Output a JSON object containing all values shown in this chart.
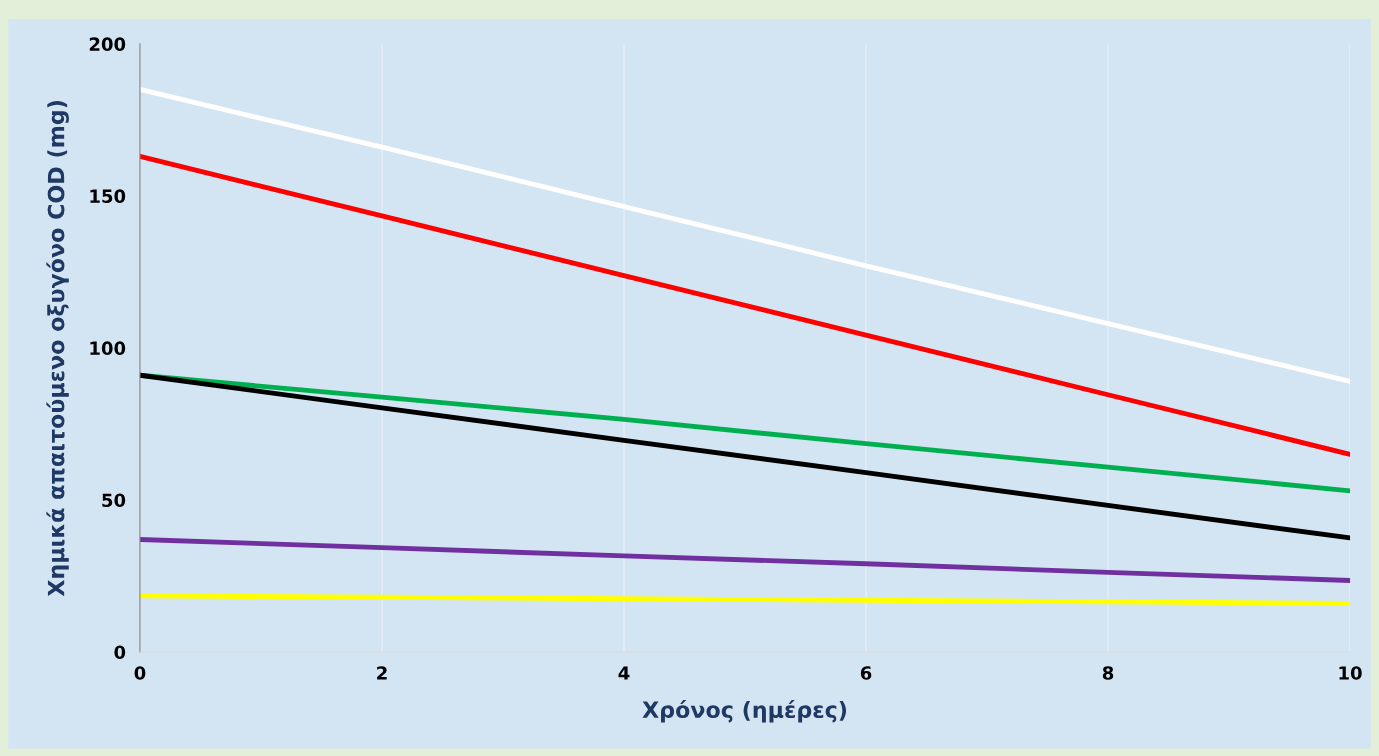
{
  "chart_data": {
    "type": "line",
    "xlabel": "Χρόνος (ημέρες)",
    "ylabel": "Χημικά απαιτούμενο οξυγόνο COD (mg)",
    "x": [
      0,
      2,
      4,
      6,
      8,
      10
    ],
    "series": [
      {
        "color": "#ffffff",
        "values": [
          185,
          166,
          146.5,
          127,
          108,
          89
        ]
      },
      {
        "color": "#ff0000",
        "values": [
          163,
          143.4,
          123.8,
          104.2,
          84.6,
          65
        ]
      },
      {
        "color": "#00b050",
        "values": [
          91,
          83.8,
          76.5,
          68.5,
          60.8,
          53
        ]
      },
      {
        "color": "#000000",
        "values": [
          91,
          80.3,
          69.6,
          59,
          48.2,
          37.5
        ]
      },
      {
        "color": "#7030a0",
        "values": [
          37,
          34.3,
          31.6,
          29,
          26.2,
          23.5
        ]
      },
      {
        "color": "#ffff00",
        "values": [
          18.5,
          18,
          17.5,
          17,
          16.5,
          16
        ]
      }
    ],
    "xlim": [
      0,
      10
    ],
    "xticks": [
      0,
      2,
      4,
      6,
      8,
      10
    ],
    "ylim": [
      0,
      200
    ],
    "yticks": [
      0,
      50,
      100,
      150,
      200
    ],
    "grid": "x",
    "legend": false,
    "marker": "none",
    "line_style": "solid"
  }
}
